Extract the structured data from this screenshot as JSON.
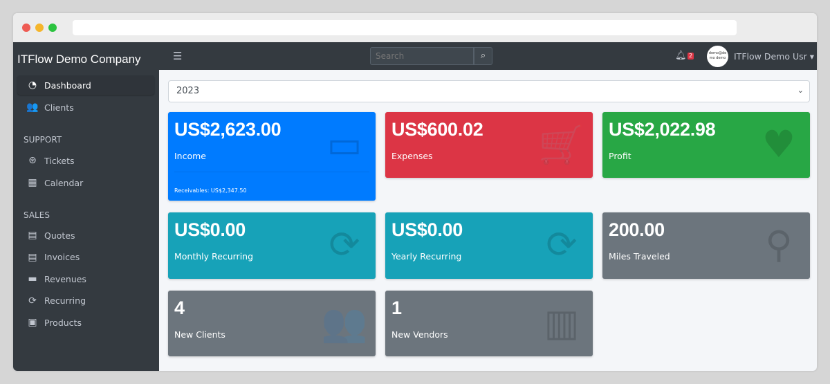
{
  "window": {
    "dots": [
      "#ee5b53",
      "#f5b52b",
      "#2bc33f"
    ]
  },
  "sidebar": {
    "brand": "ITFlow Demo Company",
    "items": [
      {
        "label": "Dashboard",
        "icon": "tachometer-icon",
        "glyph": "◔",
        "active": true
      },
      {
        "label": "Clients",
        "icon": "users-icon",
        "glyph": "👥"
      }
    ],
    "support_header": "SUPPORT",
    "support": [
      {
        "label": "Tickets",
        "icon": "life-ring-icon",
        "glyph": "⊛"
      },
      {
        "label": "Calendar",
        "icon": "calendar-icon",
        "glyph": "▦"
      }
    ],
    "sales_header": "SALES",
    "sales": [
      {
        "label": "Quotes",
        "icon": "file-icon",
        "glyph": "▤"
      },
      {
        "label": "Invoices",
        "icon": "invoice-icon",
        "glyph": "▤"
      },
      {
        "label": "Revenues",
        "icon": "credit-card-icon",
        "glyph": "▬"
      },
      {
        "label": "Recurring",
        "icon": "sync-icon",
        "glyph": "⟳"
      },
      {
        "label": "Products",
        "icon": "box-icon",
        "glyph": "▣"
      }
    ]
  },
  "topnav": {
    "menu_glyph": "☰",
    "search_placeholder": "Search",
    "search_glyph": "⌕",
    "notifications": "2",
    "avatar_text": "demo@demo demo",
    "user": "ITFlow Demo Usr ▾"
  },
  "filter": {
    "year": "2023"
  },
  "cards": [
    {
      "value": "US$2,623.00",
      "label": "Income",
      "color": "#007bff",
      "icon": "credit-card-icon",
      "glyph": "▭",
      "footer": "Receivables: US$2,347.50"
    },
    {
      "value": "US$600.02",
      "label": "Expenses",
      "color": "#dc3545",
      "icon": "cart-icon",
      "glyph": "🛒"
    },
    {
      "value": "US$2,022.98",
      "label": "Profit",
      "color": "#28a745",
      "icon": "heart-icon",
      "glyph": "♥"
    },
    {
      "value": "US$0.00",
      "label": "Monthly Recurring",
      "color": "#17a2b8",
      "icon": "sync-icon",
      "glyph": "⟳"
    },
    {
      "value": "US$0.00",
      "label": "Yearly Recurring",
      "color": "#17a2b8",
      "icon": "sync-icon",
      "glyph": "⟳"
    },
    {
      "value": "200.00",
      "label": "Miles Traveled",
      "color": "#6c757d",
      "icon": "route-icon",
      "glyph": "⚲"
    },
    {
      "value": "4",
      "label": "New Clients",
      "color": "#6c757d",
      "icon": "users-icon",
      "glyph": "👥"
    },
    {
      "value": "1",
      "label": "New Vendors",
      "color": "#6c757d",
      "icon": "building-icon",
      "glyph": "▥"
    }
  ]
}
